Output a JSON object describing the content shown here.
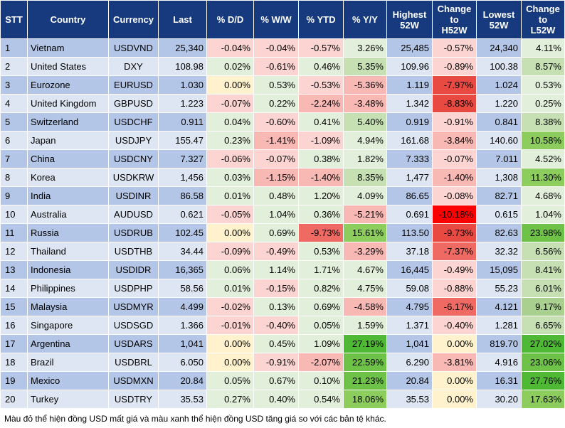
{
  "headers": {
    "stt": "STT",
    "country": "Country",
    "currency": "Currency",
    "last": "Last",
    "dd": "% D/D",
    "ww": "% W/W",
    "ytd": "% YTD",
    "yy": "% Y/Y",
    "highest_l1": "Highest",
    "highest_l2": "52W",
    "ch52_l1": "Change",
    "ch52_l2": "to",
    "ch52_l3": "H52W",
    "lowest_l1": "Lowest",
    "lowest_l2": "52W",
    "cl52_l1": "Change",
    "cl52_l2": "to",
    "cl52_l3": "L52W"
  },
  "rows": [
    {
      "stt": "1",
      "country": "Vietnam",
      "currency": "USDVND",
      "last": "25,340",
      "dd": "-0.04%",
      "ww": "-0.04%",
      "ytd": "-0.57%",
      "yy": "3.26%",
      "high": "25,485",
      "chh": "-0.57%",
      "low": "24,340",
      "chl": "4.11%"
    },
    {
      "stt": "2",
      "country": "United States",
      "currency": "DXY",
      "last": "108.98",
      "dd": "0.02%",
      "ww": "-0.61%",
      "ytd": "0.46%",
      "yy": "5.35%",
      "high": "109.96",
      "chh": "-0.89%",
      "low": "100.38",
      "chl": "8.57%"
    },
    {
      "stt": "3",
      "country": "Eurozone",
      "currency": "EURUSD",
      "last": "1.030",
      "dd": "0.00%",
      "ww": "0.53%",
      "ytd": "-0.53%",
      "yy": "-5.36%",
      "high": "1.119",
      "chh": "-7.97%",
      "low": "1.024",
      "chl": "0.53%"
    },
    {
      "stt": "4",
      "country": "United Kingdom",
      "currency": "GBPUSD",
      "last": "1.223",
      "dd": "-0.07%",
      "ww": "0.22%",
      "ytd": "-2.24%",
      "yy": "-3.48%",
      "high": "1.342",
      "chh": "-8.83%",
      "low": "1.220",
      "chl": "0.25%"
    },
    {
      "stt": "5",
      "country": "Switzerland",
      "currency": "USDCHF",
      "last": "0.911",
      "dd": "0.04%",
      "ww": "-0.60%",
      "ytd": "0.41%",
      "yy": "5.40%",
      "high": "0.919",
      "chh": "-0.91%",
      "low": "0.841",
      "chl": "8.38%"
    },
    {
      "stt": "6",
      "country": "Japan",
      "currency": "USDJPY",
      "last": "155.47",
      "dd": "0.23%",
      "ww": "-1.41%",
      "ytd": "-1.09%",
      "yy": "4.94%",
      "high": "161.68",
      "chh": "-3.84%",
      "low": "140.60",
      "chl": "10.58%"
    },
    {
      "stt": "7",
      "country": "China",
      "currency": "USDCNY",
      "last": "7.327",
      "dd": "-0.06%",
      "ww": "-0.07%",
      "ytd": "0.38%",
      "yy": "1.82%",
      "high": "7.333",
      "chh": "-0.07%",
      "low": "7.011",
      "chl": "4.52%"
    },
    {
      "stt": "8",
      "country": "Korea",
      "currency": "USDKRW",
      "last": "1,456",
      "dd": "0.03%",
      "ww": "-1.15%",
      "ytd": "-1.40%",
      "yy": "8.35%",
      "high": "1,477",
      "chh": "-1.40%",
      "low": "1,308",
      "chl": "11.30%"
    },
    {
      "stt": "9",
      "country": "India",
      "currency": "USDINR",
      "last": "86.58",
      "dd": "0.01%",
      "ww": "0.48%",
      "ytd": "1.20%",
      "yy": "4.09%",
      "high": "86.65",
      "chh": "-0.08%",
      "low": "82.71",
      "chl": "4.68%"
    },
    {
      "stt": "10",
      "country": "Australia",
      "currency": "AUDUSD",
      "last": "0.621",
      "dd": "-0.05%",
      "ww": "1.04%",
      "ytd": "0.36%",
      "yy": "-5.21%",
      "high": "0.691",
      "chh": "-10.18%",
      "low": "0.615",
      "chl": "1.04%"
    },
    {
      "stt": "11",
      "country": "Russia",
      "currency": "USDRUB",
      "last": "102.45",
      "dd": "0.00%",
      "ww": "0.69%",
      "ytd": "-9.73%",
      "yy": "15.61%",
      "high": "113.50",
      "chh": "-9.73%",
      "low": "82.63",
      "chl": "23.98%"
    },
    {
      "stt": "12",
      "country": "Thailand",
      "currency": "USDTHB",
      "last": "34.44",
      "dd": "-0.09%",
      "ww": "-0.49%",
      "ytd": "0.53%",
      "yy": "-3.29%",
      "high": "37.18",
      "chh": "-7.37%",
      "low": "32.32",
      "chl": "6.56%"
    },
    {
      "stt": "13",
      "country": "Indonesia",
      "currency": "USDIDR",
      "last": "16,365",
      "dd": "0.06%",
      "ww": "1.14%",
      "ytd": "1.71%",
      "yy": "4.67%",
      "high": "16,445",
      "chh": "-0.49%",
      "low": "15,095",
      "chl": "8.41%"
    },
    {
      "stt": "14",
      "country": "Philippines",
      "currency": "USDPHP",
      "last": "58.56",
      "dd": "0.01%",
      "ww": "-0.15%",
      "ytd": "0.82%",
      "yy": "4.75%",
      "high": "59.08",
      "chh": "-0.88%",
      "low": "55.23",
      "chl": "6.01%"
    },
    {
      "stt": "15",
      "country": "Malaysia",
      "currency": "USDMYR",
      "last": "4.499",
      "dd": "-0.02%",
      "ww": "0.13%",
      "ytd": "0.69%",
      "yy": "-4.58%",
      "high": "4.795",
      "chh": "-6.17%",
      "low": "4.121",
      "chl": "9.17%"
    },
    {
      "stt": "16",
      "country": "Singapore",
      "currency": "USDSGD",
      "last": "1.366",
      "dd": "-0.01%",
      "ww": "-0.40%",
      "ytd": "0.05%",
      "yy": "1.59%",
      "high": "1.371",
      "chh": "-0.40%",
      "low": "1.281",
      "chl": "6.65%"
    },
    {
      "stt": "17",
      "country": "Argentina",
      "currency": "USDARS",
      "last": "1,041",
      "dd": "0.00%",
      "ww": "0.45%",
      "ytd": "1.09%",
      "yy": "27.19%",
      "high": "1,041",
      "chh": "0.00%",
      "low": "819.70",
      "chl": "27.02%"
    },
    {
      "stt": "18",
      "country": "Brazil",
      "currency": "USDBRL",
      "last": "6.050",
      "dd": "0.00%",
      "ww": "-0.91%",
      "ytd": "-2.07%",
      "yy": "22.59%",
      "high": "6.290",
      "chh": "-3.81%",
      "low": "4.916",
      "chl": "23.06%"
    },
    {
      "stt": "19",
      "country": "Mexico",
      "currency": "USDMXN",
      "last": "20.84",
      "dd": "0.05%",
      "ww": "0.67%",
      "ytd": "0.10%",
      "yy": "21.23%",
      "high": "20.84",
      "chh": "0.00%",
      "low": "16.31",
      "chl": "27.76%"
    },
    {
      "stt": "20",
      "country": "Turkey",
      "currency": "USDTRY",
      "last": "35.53",
      "dd": "0.27%",
      "ww": "0.40%",
      "ytd": "0.54%",
      "yy": "18.06%",
      "high": "35.53",
      "chh": "0.00%",
      "low": "30.20",
      "chl": "17.63%"
    }
  ],
  "footnote": "Màu đỏ thể hiện đồng USD mất giá và màu xanh thể hiện đồng USD tăng giá so với các bản tệ khác.",
  "colors": {
    "header_bg": "#163a7d",
    "row_odd": "#b4c6e7",
    "row_even": "#dde6f2"
  }
}
